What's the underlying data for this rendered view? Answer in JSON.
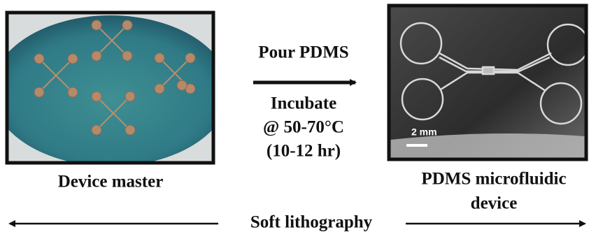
{
  "panels": {
    "left": {
      "label": "Device master"
    },
    "right": {
      "label_lines": [
        "PDMS microfluidic",
        "device"
      ],
      "scale_bar": "2 mm"
    }
  },
  "process": {
    "top": "Pour PDMS",
    "bottom": [
      "Incubate",
      "@ 50-70°C",
      "(10-12 hr)"
    ]
  },
  "footer": "Soft lithography"
}
